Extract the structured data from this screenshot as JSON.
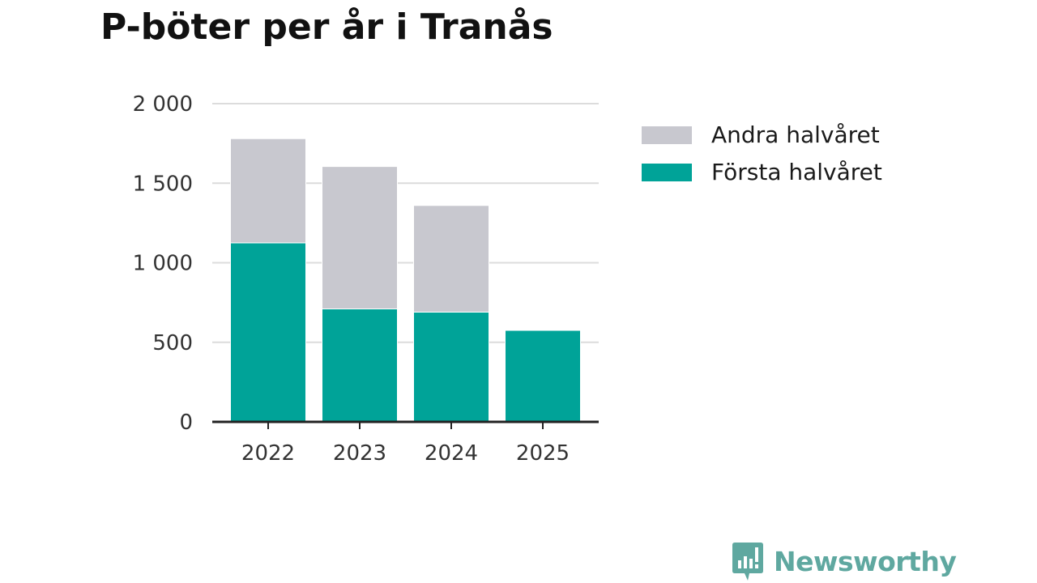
{
  "title": "P-böter per år i Tranås",
  "brand": {
    "name": "Newsworthy",
    "color": "#5fa8a0"
  },
  "chart_data": {
    "type": "bar",
    "stacked": true,
    "categories": [
      "2022",
      "2023",
      "2024",
      "2025"
    ],
    "series": [
      {
        "name": "Första halvåret",
        "color": "#00a398",
        "values": [
          1125,
          710,
          690,
          575
        ]
      },
      {
        "name": "Andra halvåret",
        "color": "#c8c8cf",
        "values": [
          655,
          895,
          670,
          0
        ]
      }
    ],
    "legend_order": [
      "Andra halvåret",
      "Första halvåret"
    ],
    "legend_position": "right",
    "ylim": [
      0,
      2000
    ],
    "yticks": [
      0,
      500,
      1000,
      1500,
      2000
    ],
    "ytick_labels": [
      "0",
      "500",
      "1 000",
      "1 500",
      "2 000"
    ],
    "grid": true,
    "xlabel": "",
    "ylabel": ""
  }
}
